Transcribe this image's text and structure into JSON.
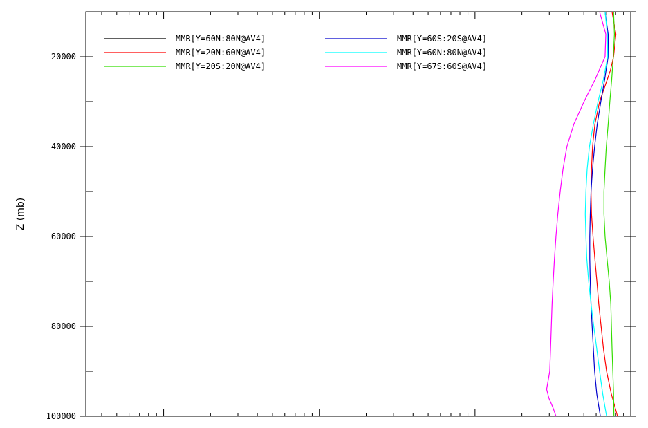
{
  "chart_data": {
    "type": "line",
    "title": "",
    "xlabel": "",
    "ylabel": "Z (mb)",
    "y_reversed": true,
    "ylim": [
      10000,
      100000
    ],
    "y_ticks": [
      20000,
      40000,
      60000,
      80000,
      100000
    ],
    "x_scale": "log",
    "grid": false,
    "legend_placement": "top-left",
    "series": [
      {
        "name": "MMR[Y=60N:80N@AV4]",
        "color": "#000000",
        "x": [],
        "y": []
      },
      {
        "name": "MMR[Y=20N:60N@AV4]",
        "color": "#ff0000",
        "y": [
          10000,
          15000,
          20000,
          23000,
          26000,
          30000,
          35000,
          40000,
          45000,
          50000,
          55000,
          60000,
          65000,
          70000,
          75000,
          80000,
          85000,
          90000,
          95000,
          100000
        ],
        "x": [
          3.88,
          3.905,
          3.89,
          3.87,
          3.84,
          3.8,
          3.77,
          3.755,
          3.748,
          3.745,
          3.748,
          3.758,
          3.77,
          3.783,
          3.795,
          3.81,
          3.825,
          3.845,
          3.875,
          3.915
        ]
      },
      {
        "name": "MMR[Y=20S:20N@AV4]",
        "color": "#33dd00",
        "y": [
          10000,
          15000,
          20000,
          25000,
          30000,
          35000,
          40000,
          45000,
          50000,
          55000,
          60000,
          65000,
          70000,
          75000,
          80000,
          85000,
          90000,
          95000,
          100000
        ],
        "x": [
          3.89,
          3.895,
          3.888,
          3.878,
          3.866,
          3.855,
          3.843,
          3.835,
          3.828,
          3.828,
          3.835,
          3.848,
          3.862,
          3.872,
          3.876,
          3.88,
          3.885,
          3.89,
          3.892
        ]
      },
      {
        "name": "MMR[Y=60S:20S@AV4]",
        "color": "#0000cc",
        "y": [
          10000,
          15000,
          20000,
          25000,
          30000,
          35000,
          40000,
          45000,
          50000,
          55000,
          60000,
          65000,
          70000,
          75000,
          80000,
          85000,
          90000,
          95000,
          100000
        ],
        "x": [
          3.835,
          3.855,
          3.855,
          3.833,
          3.808,
          3.785,
          3.768,
          3.755,
          3.745,
          3.74,
          3.737,
          3.737,
          3.74,
          3.745,
          3.752,
          3.76,
          3.768,
          3.782,
          3.805
        ]
      },
      {
        "name": "MMR[Y=60N:80N@AV4]",
        "color": "#00ffff",
        "y": [
          10000,
          15000,
          20000,
          25000,
          30000,
          35000,
          40000,
          45000,
          50000,
          55000,
          60000,
          65000,
          70000,
          75000,
          80000,
          85000,
          90000,
          95000,
          100000
        ],
        "x": [
          3.835,
          3.85,
          3.852,
          3.825,
          3.79,
          3.76,
          3.735,
          3.72,
          3.712,
          3.708,
          3.712,
          3.718,
          3.73,
          3.745,
          3.763,
          3.782,
          3.8,
          3.82,
          3.845
        ]
      },
      {
        "name": "MMR[Y=67S:60S@AV4]",
        "color": "#ff00ff",
        "y": [
          10000,
          15000,
          20000,
          25000,
          30000,
          35000,
          40000,
          45000,
          50000,
          55000,
          60000,
          65000,
          70000,
          75000,
          80000,
          85000,
          90000,
          92000,
          94000,
          96000,
          98000,
          100000
        ],
        "x": [
          3.8,
          3.84,
          3.835,
          3.772,
          3.7,
          3.635,
          3.59,
          3.565,
          3.547,
          3.532,
          3.52,
          3.51,
          3.502,
          3.495,
          3.49,
          3.485,
          3.48,
          3.47,
          3.46,
          3.475,
          3.5,
          3.52
        ]
      }
    ]
  }
}
